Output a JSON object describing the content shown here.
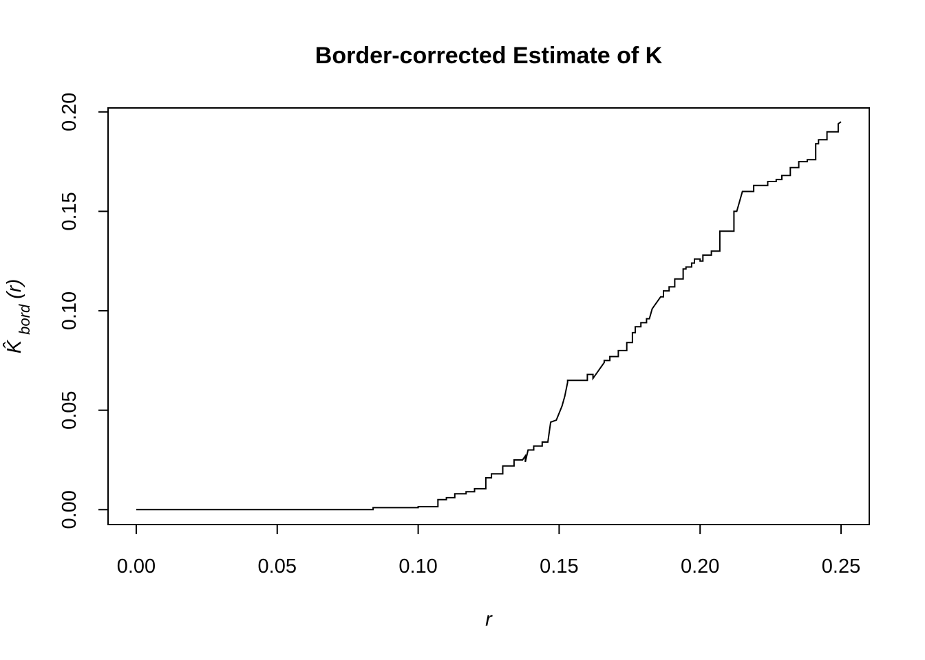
{
  "chart_data": {
    "type": "line",
    "title": "Border-corrected Estimate of K",
    "xlabel": "r",
    "ylabel": {
      "base": "K̂",
      "subscript": "bord",
      "suffix": "(r)"
    },
    "xlim": [
      -0.01,
      0.26
    ],
    "ylim": [
      -0.0075,
      0.202
    ],
    "x_ticks": [
      "0.00",
      "0.05",
      "0.10",
      "0.15",
      "0.20",
      "0.25"
    ],
    "y_ticks": [
      "0.00",
      "0.05",
      "0.10",
      "0.15",
      "0.20"
    ],
    "grid": false,
    "legend": "none",
    "line_color": "#000000",
    "series": [
      {
        "x": [
          0,
          0.084,
          0.084,
          0.1,
          0.1,
          0.107,
          0.107,
          0.11,
          0.11,
          0.113,
          0.113,
          0.117,
          0.117,
          0.12,
          0.12,
          0.124,
          0.124,
          0.126,
          0.126,
          0.13,
          0.13,
          0.134,
          0.134,
          0.137,
          0.138,
          0.138,
          0.139,
          0.141,
          0.141,
          0.144,
          0.144,
          0.146,
          0.147,
          0.147,
          0.149,
          0.149,
          0.151,
          0.152,
          0.153,
          0.153,
          0.16,
          0.16,
          0.162,
          0.162,
          0.164,
          0.165,
          0.166,
          0.166,
          0.168,
          0.168,
          0.171,
          0.171,
          0.174,
          0.174,
          0.176,
          0.176,
          0.177,
          0.177,
          0.179,
          0.179,
          0.181,
          0.181,
          0.182,
          0.183,
          0.183,
          0.185,
          0.185,
          0.186,
          0.187,
          0.187,
          0.189,
          0.189,
          0.191,
          0.191,
          0.194,
          0.194,
          0.195,
          0.195,
          0.197,
          0.197,
          0.198,
          0.198,
          0.2,
          0.2,
          0.201,
          0.201,
          0.204,
          0.204,
          0.207,
          0.207,
          0.208,
          0.208,
          0.212,
          0.212,
          0.213,
          0.214,
          0.214,
          0.215,
          0.215,
          0.219,
          0.219,
          0.224,
          0.224,
          0.227,
          0.227,
          0.229,
          0.229,
          0.232,
          0.232,
          0.235,
          0.235,
          0.238,
          0.238,
          0.239,
          0.239,
          0.241,
          0.241,
          0.242,
          0.242,
          0.245,
          0.245,
          0.247,
          0.247,
          0.249,
          0.249,
          0.25
        ],
        "y": [
          0,
          0,
          0.001,
          0.001,
          0.0015,
          0.0015,
          0.005,
          0.005,
          0.006,
          0.006,
          0.008,
          0.008,
          0.009,
          0.009,
          0.0105,
          0.0105,
          0.016,
          0.016,
          0.018,
          0.018,
          0.022,
          0.022,
          0.025,
          0.025,
          0.027,
          0.024,
          0.03,
          0.03,
          0.032,
          0.032,
          0.034,
          0.034,
          0.044,
          0.044,
          0.045,
          0.045,
          0.052,
          0.057,
          0.064,
          0.065,
          0.065,
          0.068,
          0.068,
          0.066,
          0.07,
          0.072,
          0.074,
          0.075,
          0.075,
          0.077,
          0.077,
          0.08,
          0.08,
          0.084,
          0.084,
          0.089,
          0.089,
          0.092,
          0.092,
          0.094,
          0.094,
          0.096,
          0.096,
          0.101,
          0.101,
          0.105,
          0.105,
          0.107,
          0.107,
          0.11,
          0.11,
          0.112,
          0.112,
          0.116,
          0.116,
          0.121,
          0.121,
          0.122,
          0.122,
          0.124,
          0.124,
          0.126,
          0.126,
          0.125,
          0.125,
          0.128,
          0.128,
          0.13,
          0.13,
          0.14,
          0.14,
          0.14,
          0.14,
          0.15,
          0.15,
          0.155,
          0.155,
          0.16,
          0.16,
          0.16,
          0.163,
          0.163,
          0.165,
          0.165,
          0.166,
          0.166,
          0.168,
          0.168,
          0.172,
          0.172,
          0.175,
          0.175,
          0.176,
          0.176,
          0.176,
          0.176,
          0.184,
          0.184,
          0.186,
          0.186,
          0.19,
          0.19,
          0.19,
          0.19,
          0.194,
          0.195
        ]
      }
    ]
  }
}
